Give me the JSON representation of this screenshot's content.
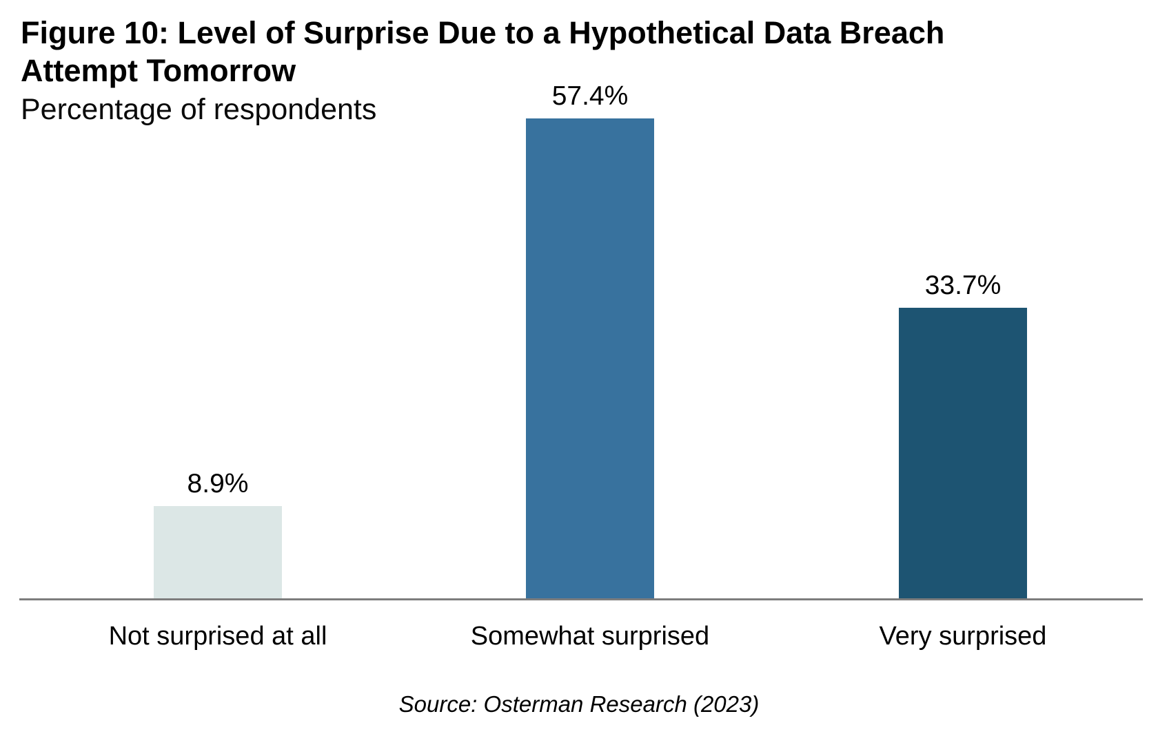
{
  "chart_data": {
    "type": "bar",
    "title": "Figure 10: Level of Surprise Due to a Hypothetical Data Breach Attempt Tomorrow",
    "subtitle": "Percentage of respondents",
    "source": "Source: Osterman Research (2023)",
    "categories": [
      "Not surprised at all",
      "Somewhat surprised",
      "Very surprised"
    ],
    "values": [
      8.9,
      57.4,
      33.7
    ],
    "value_labels": [
      "8.9%",
      "57.4%",
      "33.7%"
    ],
    "unit": "%",
    "ylim": [
      0,
      60
    ],
    "grid": false,
    "legend_position": "none",
    "y_axis_shown": false,
    "bar_colors": [
      "#DCE7E6",
      "#38729E",
      "#1D5472"
    ],
    "axis_line_color": "#7D7D7D",
    "text_color": "#000000",
    "background_color": "#FFFFFF"
  }
}
